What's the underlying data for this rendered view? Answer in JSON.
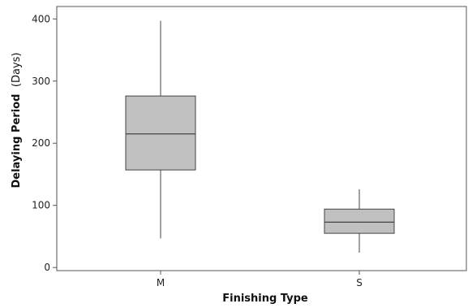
{
  "chart_data": {
    "type": "box",
    "xlabel": "Finishing Type",
    "ylabel_main": "Delaying Period",
    "ylabel_unit": "(Days)",
    "categories": [
      "M",
      "S"
    ],
    "ylim": [
      -5,
      420
    ],
    "yticks": [
      0,
      100,
      200,
      300,
      400
    ],
    "boxes": [
      {
        "category": "M",
        "min": 47,
        "q1": 157,
        "median": 215,
        "q3": 276,
        "max": 397
      },
      {
        "category": "S",
        "min": 24,
        "q1": 55,
        "median": 73,
        "q3": 94,
        "max": 126
      }
    ],
    "box_fill": "#c0c0c0",
    "box_stroke": "#444444",
    "grid": false
  }
}
